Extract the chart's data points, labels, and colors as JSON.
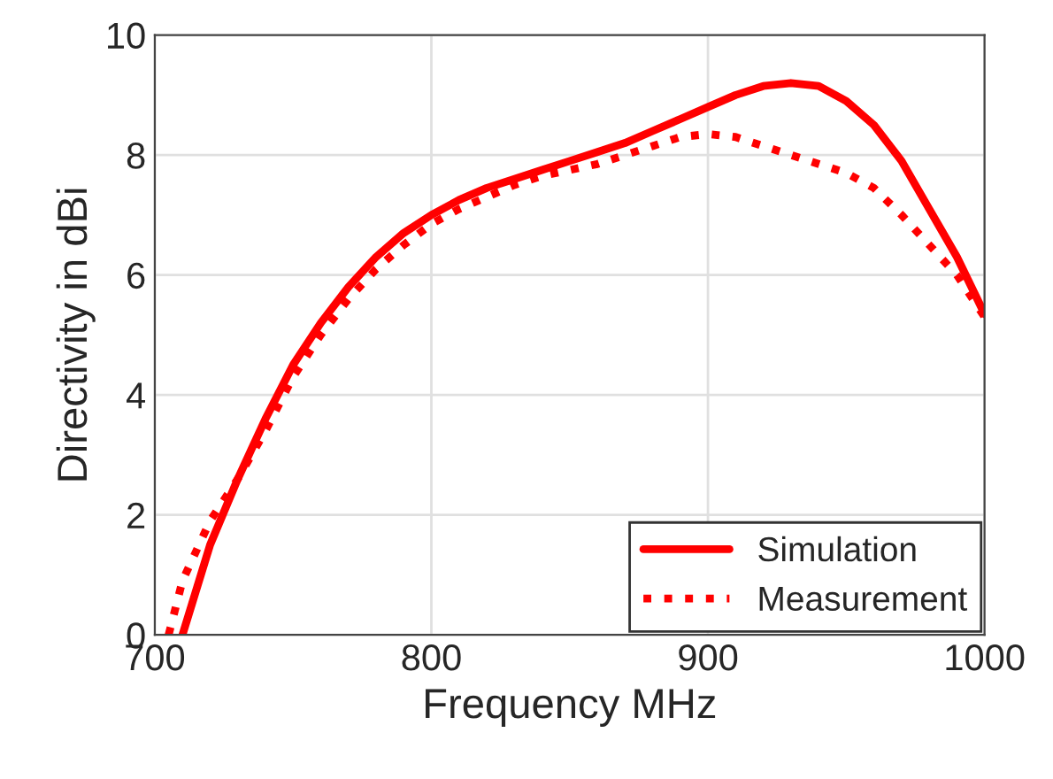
{
  "chart_data": {
    "type": "line",
    "xlabel": "Frequency MHz",
    "ylabel": "Directivity in dBi",
    "xlim": [
      700,
      1000
    ],
    "xticks": [
      700,
      800,
      900,
      1000
    ],
    "ylim": [
      0,
      10
    ],
    "yticks": [
      0,
      2,
      4,
      6,
      8,
      10
    ],
    "grid": true,
    "legend": "bottom right",
    "series": [
      {
        "name": "Simulation",
        "color": "#ff0000",
        "line_style": "solid",
        "x": [
          710,
          720,
          730,
          740,
          750,
          760,
          770,
          780,
          790,
          800,
          810,
          820,
          830,
          840,
          850,
          860,
          870,
          880,
          890,
          900,
          910,
          920,
          930,
          940,
          950,
          960,
          970,
          980,
          990,
          1000
        ],
        "values": [
          0,
          1.5,
          2.6,
          3.6,
          4.5,
          5.2,
          5.8,
          6.3,
          6.7,
          7.0,
          7.25,
          7.45,
          7.6,
          7.75,
          7.9,
          8.05,
          8.2,
          8.4,
          8.6,
          8.8,
          9.0,
          9.15,
          9.2,
          9.15,
          8.9,
          8.5,
          7.9,
          7.1,
          6.3,
          5.35
        ]
      },
      {
        "name": "Measurement",
        "color": "#ff0000",
        "line_style": "dotted",
        "x": [
          705,
          710,
          720,
          730,
          740,
          750,
          760,
          770,
          780,
          790,
          800,
          810,
          820,
          830,
          840,
          850,
          860,
          870,
          880,
          890,
          900,
          910,
          920,
          930,
          940,
          950,
          960,
          970,
          980,
          990,
          1000
        ],
        "values": [
          0,
          0.9,
          1.9,
          2.6,
          3.4,
          4.3,
          5.0,
          5.6,
          6.1,
          6.5,
          6.85,
          7.1,
          7.3,
          7.5,
          7.65,
          7.75,
          7.85,
          8.0,
          8.15,
          8.3,
          8.35,
          8.3,
          8.15,
          8.0,
          7.85,
          7.7,
          7.45,
          7.0,
          6.5,
          6.0,
          5.3
        ]
      }
    ]
  }
}
